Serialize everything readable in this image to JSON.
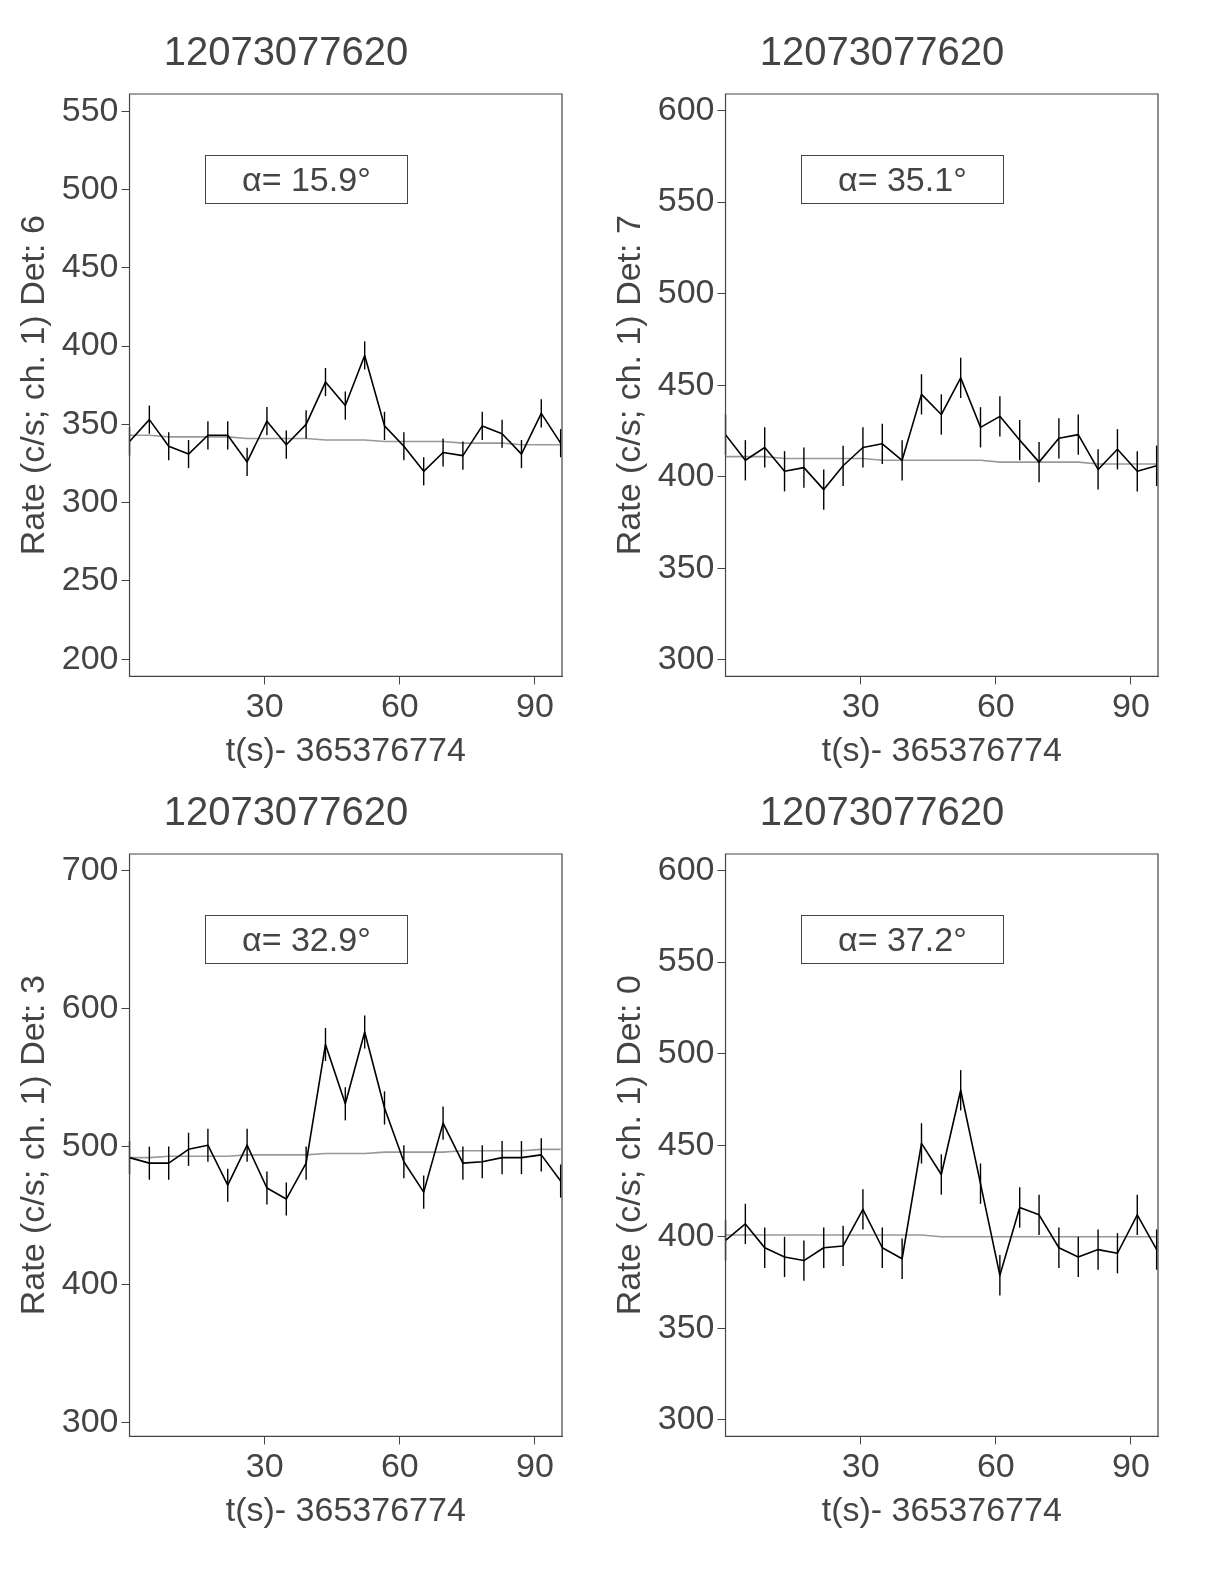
{
  "chart_data": [
    {
      "type": "line",
      "title": "12073077620",
      "xlabel": "t(s)- 365376774",
      "ylabel": "Rate (c/s; ch. 1) Det: 6",
      "annotations": [
        "α= 15.9°"
      ],
      "marker": "none",
      "grid": false,
      "legend": false,
      "xlim": [
        0,
        96
      ],
      "xticks": [
        30,
        60,
        90
      ],
      "ylim": [
        189,
        561
      ],
      "yticks": [
        200,
        250,
        300,
        350,
        400,
        450,
        500,
        550
      ],
      "x": [
        0,
        4.4,
        8.7,
        13.1,
        17.4,
        21.8,
        26.1,
        30.5,
        34.8,
        39.2,
        43.5,
        47.9,
        52.2,
        56.6,
        60.9,
        65.3,
        69.6,
        74,
        78.3,
        82.7,
        87,
        91.4,
        95.7
      ],
      "series": [
        {
          "color": "#000000",
          "values": [
            339,
            353,
            336,
            331,
            343,
            343,
            326,
            352,
            337,
            350,
            377,
            362,
            394,
            349,
            336,
            320,
            332,
            330,
            349,
            344,
            331,
            357,
            338
          ],
          "errors": [
            9,
            9,
            9,
            9,
            9,
            9,
            9,
            9,
            9,
            9,
            9,
            9,
            9,
            9,
            9,
            9,
            9,
            9,
            9,
            9,
            9,
            9,
            9
          ]
        },
        {
          "type": "line",
          "color": "#999999",
          "values": [
            343,
            343,
            342,
            342,
            342,
            342,
            341,
            341,
            341,
            341,
            340,
            340,
            340,
            339,
            339,
            339,
            339,
            338,
            338,
            338,
            337,
            337,
            337
          ]
        }
      ]
    },
    {
      "type": "line",
      "title": "12073077620",
      "xlabel": "t(s)- 365376774",
      "ylabel": "Rate (c/s; ch. 1) Det: 7",
      "annotations": [
        "α= 35.1°"
      ],
      "marker": "none",
      "grid": false,
      "legend": false,
      "xlim": [
        0,
        96
      ],
      "xticks": [
        30,
        60,
        90
      ],
      "ylim": [
        291,
        609
      ],
      "yticks": [
        300,
        350,
        400,
        450,
        500,
        550,
        600
      ],
      "x": [
        0,
        4.4,
        8.7,
        13.1,
        17.4,
        21.8,
        26.1,
        30.5,
        34.8,
        39.2,
        43.5,
        47.9,
        52.2,
        56.6,
        60.9,
        65.3,
        69.6,
        74,
        78.3,
        82.7,
        87,
        91.4,
        95.7
      ],
      "series": [
        {
          "color": "#000000",
          "values": [
            423,
            409,
            416,
            403,
            405,
            393,
            406,
            416,
            418,
            409,
            445,
            434,
            454,
            427,
            433,
            420,
            408,
            421,
            423,
            404,
            415,
            403,
            406
          ],
          "errors": [
            11,
            11,
            11,
            11,
            11,
            11,
            11,
            11,
            11,
            11,
            11,
            11,
            11,
            11,
            11,
            11,
            11,
            11,
            11,
            11,
            11,
            11,
            11
          ]
        },
        {
          "type": "line",
          "color": "#999999",
          "values": [
            411,
            411,
            411,
            410,
            410,
            410,
            410,
            410,
            409,
            409,
            409,
            409,
            409,
            409,
            408,
            408,
            408,
            408,
            408,
            407,
            407,
            407,
            407
          ]
        }
      ]
    },
    {
      "type": "line",
      "title": "12073077620",
      "xlabel": "t(s)- 365376774",
      "ylabel": "Rate (c/s; ch. 1) Det: 3",
      "annotations": [
        "α= 32.9°"
      ],
      "marker": "none",
      "grid": false,
      "legend": false,
      "xlim": [
        0,
        96
      ],
      "xticks": [
        30,
        60,
        90
      ],
      "ylim": [
        290,
        712
      ],
      "yticks": [
        300,
        400,
        500,
        600,
        700
      ],
      "x": [
        0,
        4.4,
        8.7,
        13.1,
        17.4,
        21.8,
        26.1,
        30.5,
        34.8,
        39.2,
        43.5,
        47.9,
        52.2,
        56.6,
        60.9,
        65.3,
        69.6,
        74,
        78.3,
        82.7,
        87,
        91.4,
        95.7
      ],
      "series": [
        {
          "color": "#000000",
          "values": [
            492,
            488,
            488,
            498,
            501,
            472,
            501,
            470,
            462,
            488,
            574,
            531,
            583,
            528,
            489,
            467,
            517,
            488,
            489,
            492,
            492,
            494,
            475
          ],
          "errors": [
            12,
            12,
            12,
            12,
            12,
            12,
            12,
            12,
            12,
            12,
            12,
            12,
            12,
            12,
            12,
            12,
            12,
            12,
            12,
            12,
            12,
            12,
            12
          ]
        },
        {
          "type": "line",
          "color": "#999999",
          "values": [
            492,
            492,
            493,
            493,
            493,
            493,
            494,
            494,
            494,
            494,
            495,
            495,
            495,
            496,
            496,
            496,
            496,
            497,
            497,
            497,
            497,
            498,
            498
          ]
        }
      ]
    },
    {
      "type": "line",
      "title": "12073077620",
      "xlabel": "t(s)- 365376774",
      "ylabel": "Rate (c/s; ch. 1) Det: 0",
      "annotations": [
        "α= 37.2°"
      ],
      "marker": "none",
      "grid": false,
      "legend": false,
      "xlim": [
        0,
        96
      ],
      "xticks": [
        30,
        60,
        90
      ],
      "ylim": [
        291,
        609
      ],
      "yticks": [
        300,
        350,
        400,
        450,
        500,
        550,
        600
      ],
      "x": [
        0,
        4.4,
        8.7,
        13.1,
        17.4,
        21.8,
        26.1,
        30.5,
        34.8,
        39.2,
        43.5,
        47.9,
        52.2,
        56.6,
        60.9,
        65.3,
        69.6,
        74,
        78.3,
        82.7,
        87,
        91.4,
        95.7
      ],
      "series": [
        {
          "color": "#000000",
          "values": [
            398,
            407,
            394,
            389,
            387,
            394,
            395,
            415,
            394,
            388,
            451,
            434,
            480,
            429,
            379,
            416,
            412,
            394,
            389,
            393,
            391,
            412,
            393
          ],
          "errors": [
            11,
            11,
            11,
            11,
            11,
            11,
            11,
            11,
            11,
            11,
            11,
            11,
            11,
            11,
            11,
            11,
            11,
            11,
            11,
            11,
            11,
            11,
            11
          ]
        },
        {
          "type": "line",
          "color": "#999999",
          "values": [
            401,
            401,
            401,
            401,
            401,
            401,
            401,
            401,
            401,
            401,
            401,
            400,
            400,
            400,
            400,
            400,
            400,
            400,
            400,
            400,
            400,
            400,
            400
          ]
        }
      ]
    }
  ]
}
